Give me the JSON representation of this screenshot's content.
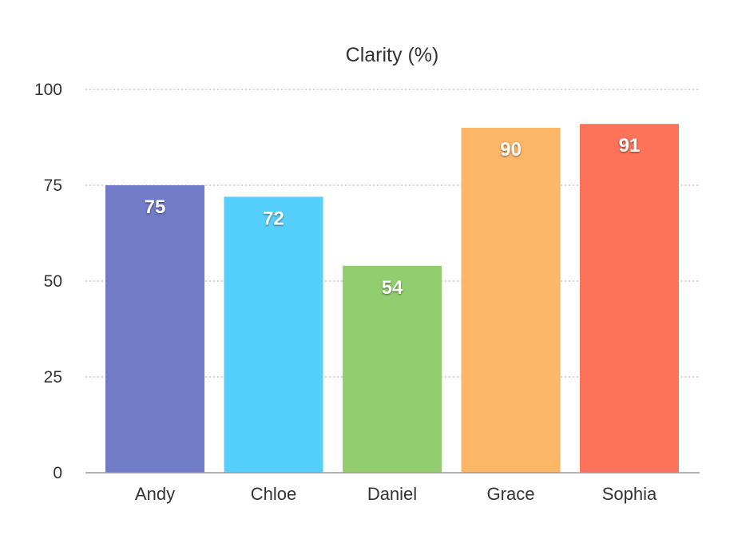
{
  "chart_data": {
    "type": "bar",
    "title": "Clarity (%)",
    "xlabel": "",
    "ylabel": "",
    "categories": [
      "Andy",
      "Chloe",
      "Daniel",
      "Grace",
      "Sophia"
    ],
    "values": [
      75,
      72,
      54,
      90,
      91
    ],
    "value_labels": [
      "75",
      "72",
      "54",
      "90",
      "91"
    ],
    "colors": [
      "#717cc9",
      "#55cffb",
      "#92ce6f",
      "#fcb668",
      "#fd735a"
    ],
    "ylim": [
      0,
      100
    ],
    "yticks": [
      0,
      25,
      50,
      75,
      100
    ],
    "ytick_labels": [
      "0",
      "25",
      "50",
      "75",
      "100"
    ],
    "grid": true,
    "legend": "none"
  }
}
